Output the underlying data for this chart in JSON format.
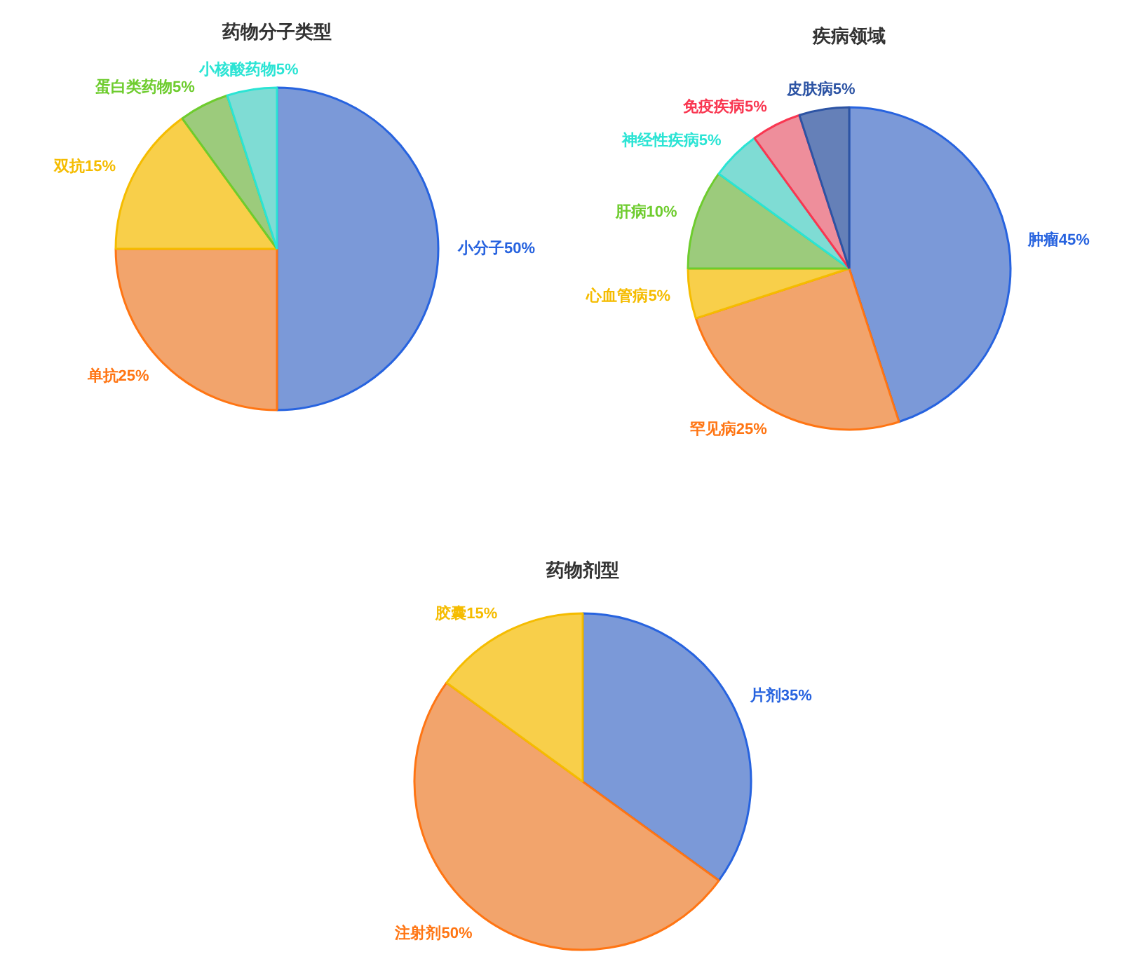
{
  "chart_data": [
    {
      "type": "pie",
      "title": "药物分子类型",
      "categories": [
        "小分子",
        "单抗",
        "双抗",
        "蛋白类药物",
        "小核酸药物"
      ],
      "values": [
        50,
        25,
        15,
        5,
        5
      ],
      "value_labels": [
        "50%",
        "25%",
        "15%",
        "5%",
        "5%"
      ],
      "colors": [
        "#7b99d8",
        "#f2a46c",
        "#f8cf4a",
        "#9ccb7c",
        "#7fdcd4"
      ]
    },
    {
      "type": "pie",
      "title": "疾病领域",
      "categories": [
        "肿瘤",
        "罕见病",
        "心血管病",
        "肝病",
        "神经性疾病",
        "免疫疾病",
        "皮肤病"
      ],
      "values": [
        45,
        25,
        5,
        10,
        5,
        5,
        5
      ],
      "value_labels": [
        "45%",
        "25%",
        "5%",
        "10%",
        "5%",
        "5%",
        "5%"
      ],
      "colors": [
        "#7b99d8",
        "#f2a46c",
        "#f8cf4a",
        "#9ccb7c",
        "#7fdcd4",
        "#ee8e9b",
        "#6580b8"
      ]
    },
    {
      "type": "pie",
      "title": "药物剂型",
      "categories": [
        "片剂",
        "注射剂",
        "胶囊"
      ],
      "values": [
        35,
        50,
        15
      ],
      "value_labels": [
        "35%",
        "50%",
        "15%"
      ],
      "colors": [
        "#7b99d8",
        "#f2a46c",
        "#f8cf4a"
      ]
    }
  ]
}
